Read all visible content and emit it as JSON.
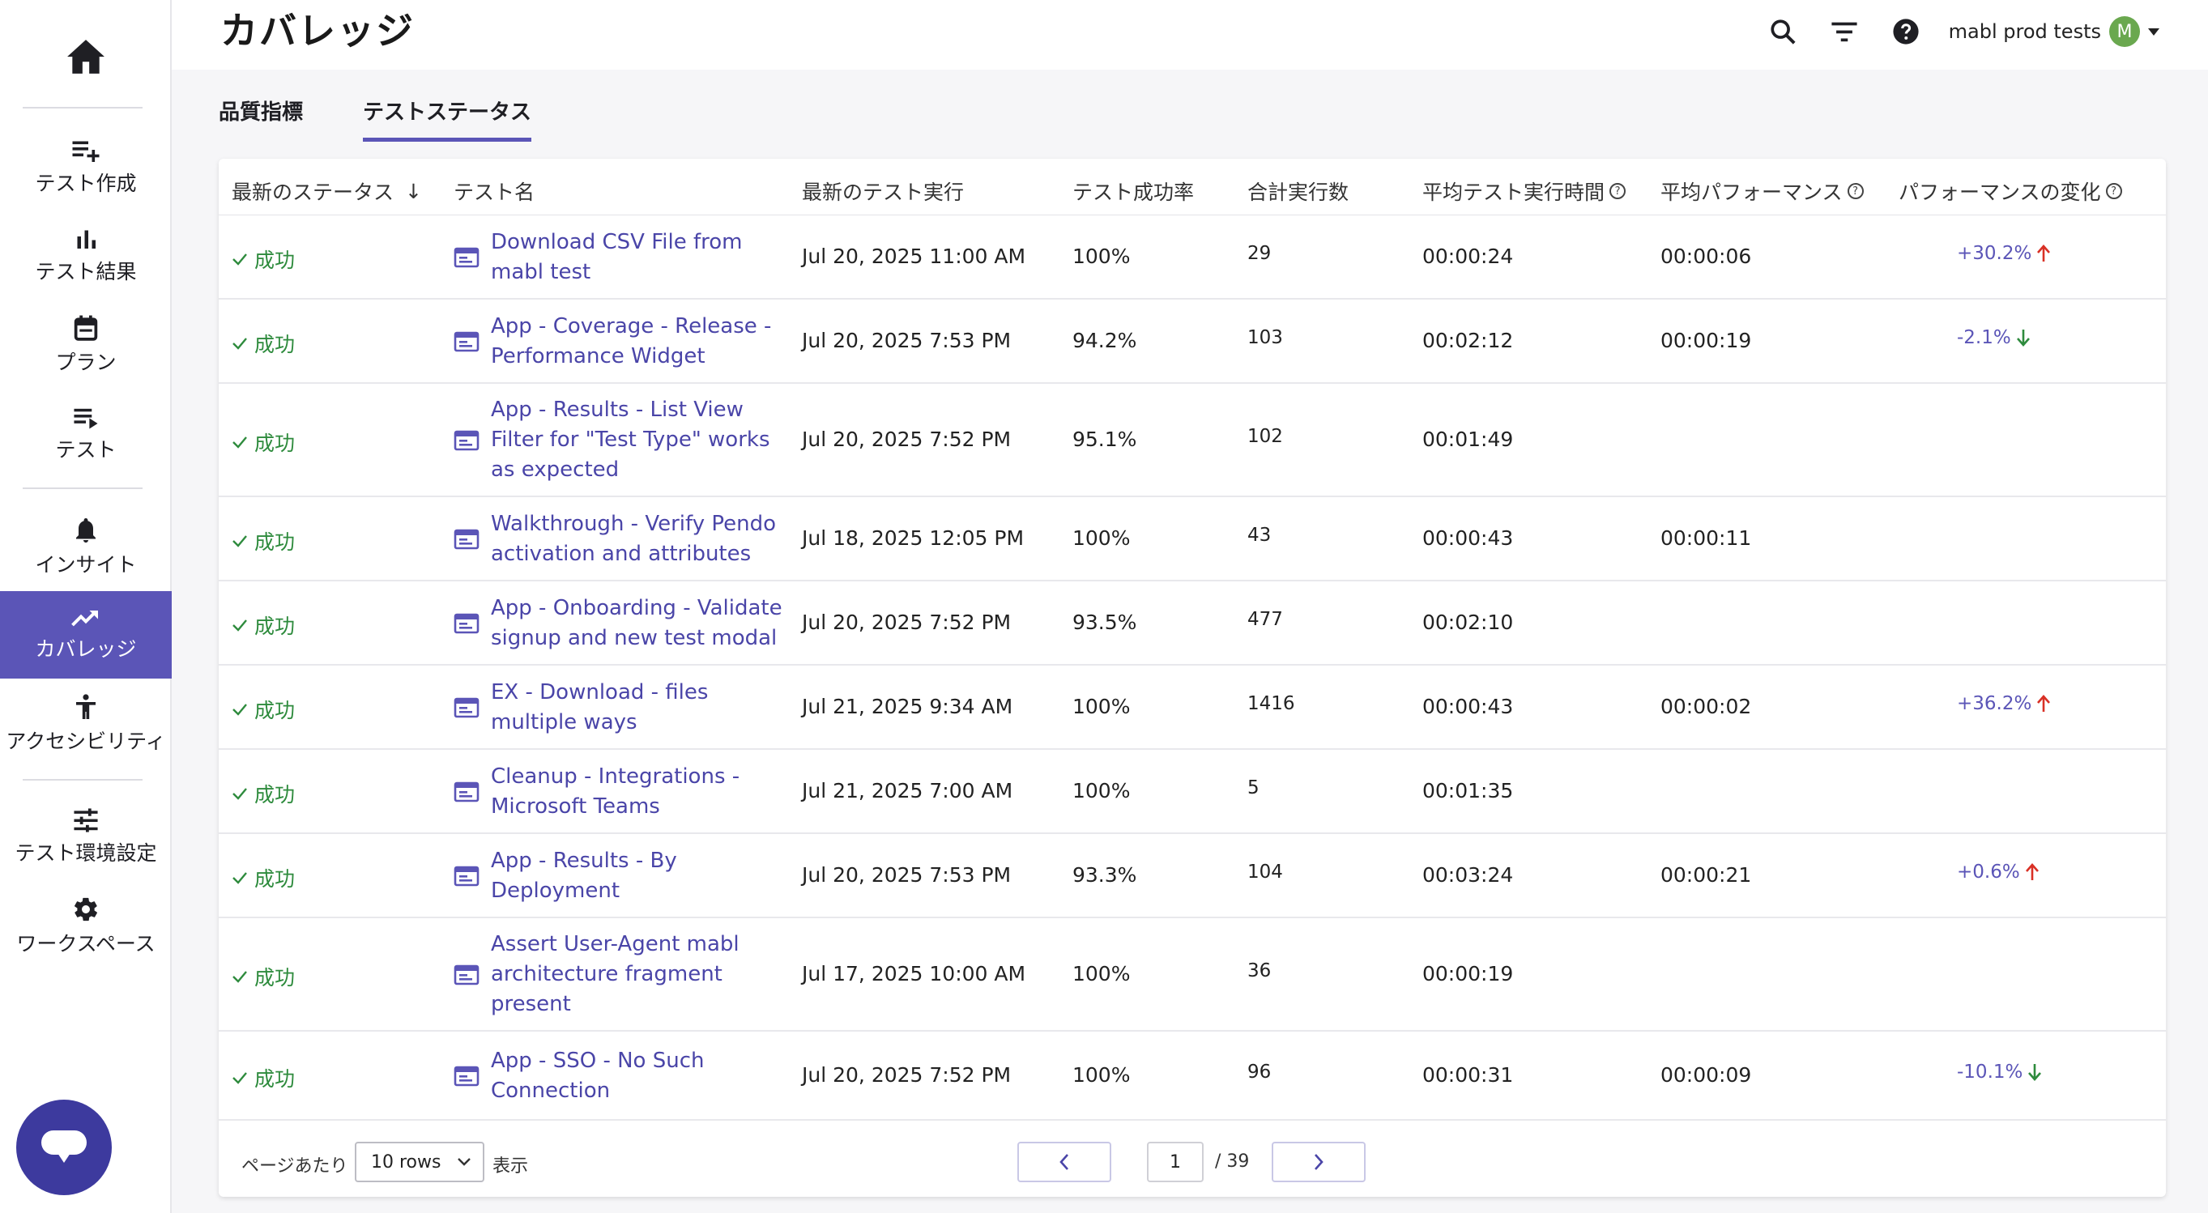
{
  "app": {
    "page_title": "カバレッジ"
  },
  "sidebar": {
    "items": [
      {
        "label": "テスト作成",
        "icon": "playlist-add-icon"
      },
      {
        "label": "テスト結果",
        "icon": "bar-chart-icon"
      },
      {
        "label": "プラン",
        "icon": "calendar-icon"
      },
      {
        "label": "テスト",
        "icon": "list-icon"
      },
      {
        "label": "インサイト",
        "icon": "bell-icon"
      },
      {
        "label": "カバレッジ",
        "icon": "trending-up-icon",
        "active": true
      },
      {
        "label": "アクセシビリティ",
        "icon": "accessibility-icon"
      },
      {
        "label": "テスト環境設定",
        "icon": "tune-icon"
      },
      {
        "label": "ワークスペース",
        "icon": "gear-icon"
      }
    ]
  },
  "header": {
    "user_name": "mabl prod tests",
    "avatar_initial": "M"
  },
  "tabs": [
    {
      "label": "品質指標",
      "active": false
    },
    {
      "label": "テストステータス",
      "active": true
    }
  ],
  "table": {
    "columns": [
      "最新のステータス",
      "テスト名",
      "最新のテスト実行",
      "テスト成功率",
      "合計実行数",
      "平均テスト実行時間",
      "平均パフォーマンス",
      "パフォーマンスの変化"
    ],
    "sort_arrow": "↓",
    "rows": [
      {
        "status": "成功",
        "name": "Download CSV File from mabl test",
        "last_run": "Jul 20, 2025 11:00 AM",
        "rate": "100%",
        "runs": "29",
        "avg_time": "00:00:24",
        "avg_perf": "00:00:06",
        "perf_change": "+30.2%",
        "dir": "up"
      },
      {
        "status": "成功",
        "name": "App - Coverage - Release - Performance Widget",
        "last_run": "Jul 20, 2025 7:53 PM",
        "rate": "94.2%",
        "runs": "103",
        "avg_time": "00:02:12",
        "avg_perf": "00:00:19",
        "perf_change": "-2.1%",
        "dir": "down"
      },
      {
        "status": "成功",
        "name": "App - Results - List View Filter for \"Test Type\" works as expected",
        "last_run": "Jul 20, 2025 7:52 PM",
        "rate": "95.1%",
        "runs": "102",
        "avg_time": "00:01:49",
        "avg_perf": "",
        "perf_change": "",
        "dir": ""
      },
      {
        "status": "成功",
        "name": "Walkthrough - Verify Pendo activation and attributes",
        "last_run": "Jul 18, 2025 12:05 PM",
        "rate": "100%",
        "runs": "43",
        "avg_time": "00:00:43",
        "avg_perf": "00:00:11",
        "perf_change": "",
        "dir": ""
      },
      {
        "status": "成功",
        "name": "App - Onboarding - Validate signup and new test modal",
        "last_run": "Jul 20, 2025 7:52 PM",
        "rate": "93.5%",
        "runs": "477",
        "avg_time": "00:02:10",
        "avg_perf": "",
        "perf_change": "",
        "dir": ""
      },
      {
        "status": "成功",
        "name": "EX - Download - files multiple ways",
        "last_run": "Jul 21, 2025 9:34 AM",
        "rate": "100%",
        "runs": "1416",
        "avg_time": "00:00:43",
        "avg_perf": "00:00:02",
        "perf_change": "+36.2%",
        "dir": "up"
      },
      {
        "status": "成功",
        "name": "Cleanup - Integrations - Microsoft Teams",
        "last_run": "Jul 21, 2025 7:00 AM",
        "rate": "100%",
        "runs": "5",
        "avg_time": "00:01:35",
        "avg_perf": "",
        "perf_change": "",
        "dir": ""
      },
      {
        "status": "成功",
        "name": "App - Results - By Deployment",
        "last_run": "Jul 20, 2025 7:53 PM",
        "rate": "93.3%",
        "runs": "104",
        "avg_time": "00:03:24",
        "avg_perf": "00:00:21",
        "perf_change": "+0.6%",
        "dir": "up"
      },
      {
        "status": "成功",
        "name": "Assert User-Agent mabl architecture fragment present",
        "last_run": "Jul 17, 2025 10:00 AM",
        "rate": "100%",
        "runs": "36",
        "avg_time": "00:00:19",
        "avg_perf": "",
        "perf_change": "",
        "dir": ""
      },
      {
        "status": "成功",
        "name": "App - SSO - No Such Connection",
        "last_run": "Jul 20, 2025 7:52 PM",
        "rate": "100%",
        "runs": "96",
        "avg_time": "00:00:31",
        "avg_perf": "00:00:09",
        "perf_change": "-10.1%",
        "dir": "down"
      }
    ]
  },
  "pagination": {
    "per_page_label": "ページあたり",
    "rows_option": "10 rows",
    "show_label": "表示",
    "current_page": "1",
    "total_pages": "/ 39"
  },
  "colors": {
    "accent": "#5b55b7",
    "success": "#2e8b3d",
    "up": "#d93025",
    "down": "#2e8b3d"
  }
}
